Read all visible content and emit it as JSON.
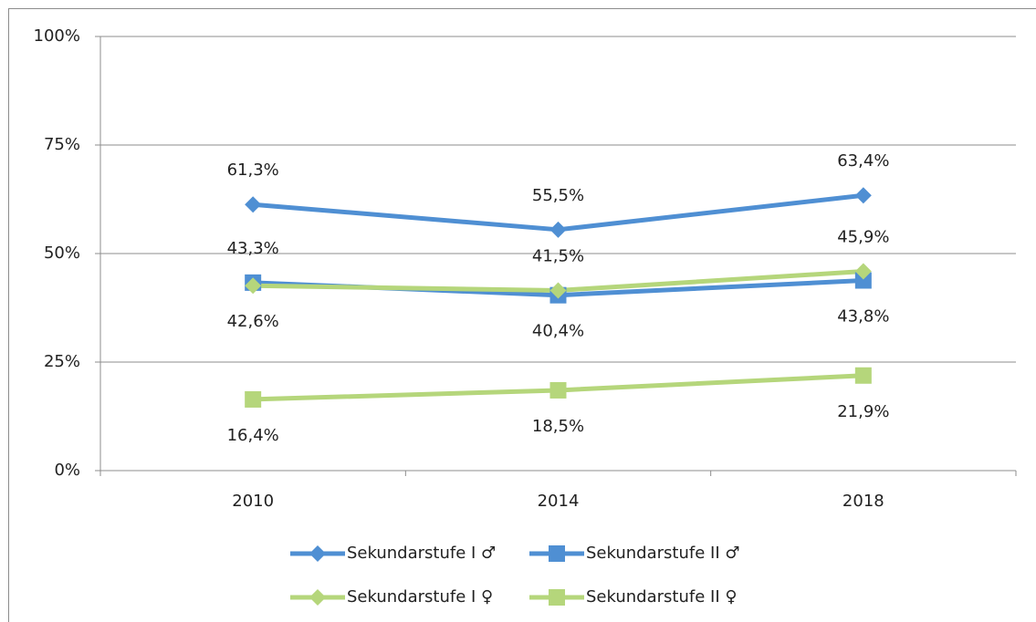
{
  "chart_data": {
    "type": "line",
    "categories": [
      "2010",
      "2014",
      "2018"
    ],
    "series": [
      {
        "name": "Sekundarstufe I ♂",
        "color": "#4f8fd3",
        "marker": "diamond",
        "values": [
          61.3,
          55.5,
          63.4
        ],
        "value_labels": [
          "61,3%",
          "55,5%",
          "63,4%"
        ]
      },
      {
        "name": "Sekundarstufe II ♂",
        "color": "#4f8fd3",
        "marker": "square",
        "values": [
          43.3,
          40.4,
          43.8
        ],
        "value_labels": [
          "43,3%",
          "40,4%",
          "43,8%"
        ]
      },
      {
        "name": "Sekundarstufe I ♀",
        "color": "#b5d67b",
        "marker": "diamond",
        "values": [
          42.6,
          41.5,
          45.9
        ],
        "value_labels": [
          "42,6%",
          "41,5%",
          "45,9%"
        ]
      },
      {
        "name": "Sekundarstufe II ♀",
        "color": "#b5d67b",
        "marker": "square",
        "values": [
          16.4,
          18.5,
          21.9
        ],
        "value_labels": [
          "16,4%",
          "18,5%",
          "21,9%"
        ]
      }
    ],
    "ylim": [
      0,
      100
    ],
    "yticks": [
      {
        "value": 0,
        "label": "0%"
      },
      {
        "value": 25,
        "label": "25%"
      },
      {
        "value": 50,
        "label": "50%"
      },
      {
        "value": 75,
        "label": "75%"
      },
      {
        "value": 100,
        "label": "100%"
      }
    ],
    "grid": true,
    "legend": "bottom"
  }
}
